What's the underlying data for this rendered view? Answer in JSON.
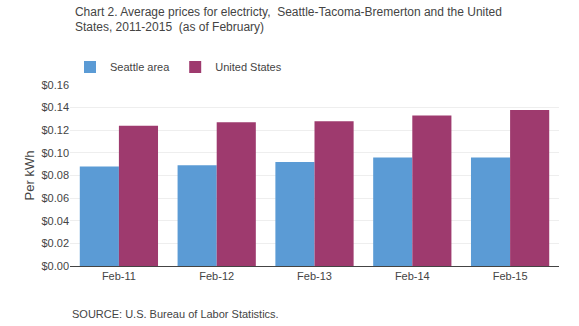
{
  "chart_data": {
    "type": "bar",
    "title": "Chart 2. Average prices for electricty,  Seattle-Tacoma-Bremerton and the United\nStates, 2011-2015  (as of February)",
    "y_label": "Per kWh",
    "annotations": [
      "SOURCE: U.S. Bureau of Labor Statistics."
    ],
    "categories": [
      "Feb-11",
      "Feb-12",
      "Feb-13",
      "Feb-14",
      "Feb-15"
    ],
    "series": [
      {
        "name": "Seattle area",
        "color": "#5B9BD5",
        "values": [
          0.088,
          0.089,
          0.092,
          0.096,
          0.096
        ]
      },
      {
        "name": "United States",
        "color": "#9E3A6E",
        "values": [
          0.124,
          0.127,
          0.128,
          0.133,
          0.138
        ]
      }
    ],
    "ylim": [
      0,
      0.16
    ],
    "yticks": [
      {
        "value": 0.0,
        "label": "$0.00"
      },
      {
        "value": 0.02,
        "label": "$0.02"
      },
      {
        "value": 0.04,
        "label": "$0.04"
      },
      {
        "value": 0.06,
        "label": "$0.06"
      },
      {
        "value": 0.08,
        "label": "$0.08"
      },
      {
        "value": 0.1,
        "label": "$0.10"
      },
      {
        "value": 0.12,
        "label": "$0.12"
      },
      {
        "value": 0.14,
        "label": "$0.14"
      },
      {
        "value": 0.16,
        "label": "$0.16"
      }
    ],
    "grid": true,
    "legend": "top left"
  }
}
